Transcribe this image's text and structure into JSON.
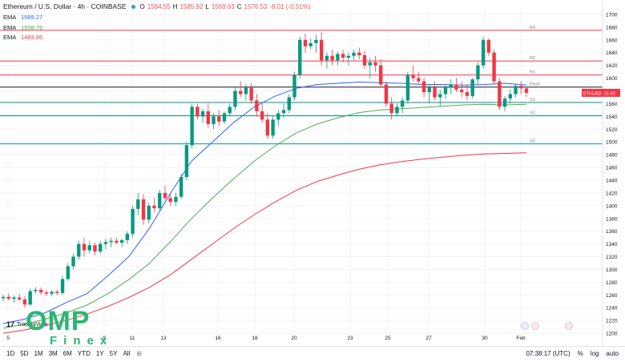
{
  "header": {
    "title": "Ethereum / U.S. Dollar · 4h · COINBASE",
    "ohlc": [
      {
        "k": "O",
        "v": "1584.55"
      },
      {
        "k": "H",
        "v": "1585.92"
      },
      {
        "k": "L",
        "v": "1569.63"
      },
      {
        "k": "C",
        "v": "1576.53"
      },
      {
        "k": "",
        "v": "-8.01 (-0.51%)"
      }
    ]
  },
  "emas": [
    {
      "label": "EMA",
      "value": "1589.27",
      "color": "#2962ff"
    },
    {
      "label": "EMA",
      "value": "1558.76",
      "color": "#4caf50"
    },
    {
      "label": "EMA",
      "value": "1483.06",
      "color": "#f23645"
    }
  ],
  "logo": {
    "tradingview": "TradingView",
    "omp_big": "OMP",
    "omp_small": "Finex"
  },
  "bottom_bar": {
    "timeframes": [
      "1D",
      "5D",
      "1M",
      "3M",
      "6M",
      "YTD",
      "1Y",
      "5Y",
      "All"
    ],
    "clock": "07:38:17 (UTC)",
    "percent": "%",
    "log": "log",
    "auto": "auto"
  },
  "chart_data": {
    "type": "candlestick",
    "symbol_tag": "ETHUSD",
    "symbol_tag_sub": "21:42",
    "ylim": [
      1180,
      1710
    ],
    "y_ticks": [
      1200,
      1220,
      1240,
      1260,
      1280,
      1300,
      1320,
      1340,
      1360,
      1380,
      1400,
      1420,
      1440,
      1460,
      1480,
      1500,
      1520,
      1540,
      1560,
      1580,
      1600,
      1620,
      1640,
      1660,
      1680,
      1700
    ],
    "x_ticks": [
      "5",
      "9",
      "11",
      "13",
      "16",
      "18",
      "20",
      "23",
      "25",
      "27",
      "30",
      "Feb"
    ],
    "levels": [
      {
        "name": "R3",
        "value": 1675,
        "color": "#f23645"
      },
      {
        "name": "R2",
        "value": 1627,
        "color": "#f23645"
      },
      {
        "name": "R1",
        "value": 1605,
        "color": "#f23645"
      },
      {
        "name": "Pivot",
        "value": 1586,
        "color": "#131722"
      },
      {
        "name": "S1",
        "value": 1562,
        "color": "#089981"
      },
      {
        "name": "S2",
        "value": 1541,
        "color": "#089981"
      },
      {
        "name": "S3",
        "value": 1497,
        "color": "#089981"
      }
    ],
    "candles": [
      [
        1255,
        1260,
        1250,
        1257
      ],
      [
        1257,
        1262,
        1252,
        1254
      ],
      [
        1254,
        1259,
        1248,
        1256
      ],
      [
        1256,
        1262,
        1251,
        1253
      ],
      [
        1253,
        1258,
        1240,
        1245
      ],
      [
        1245,
        1270,
        1243,
        1266
      ],
      [
        1266,
        1272,
        1262,
        1268
      ],
      [
        1268,
        1272,
        1260,
        1264
      ],
      [
        1264,
        1268,
        1258,
        1262
      ],
      [
        1262,
        1267,
        1258,
        1265
      ],
      [
        1265,
        1268,
        1260,
        1263
      ],
      [
        1263,
        1290,
        1261,
        1285
      ],
      [
        1285,
        1310,
        1282,
        1305
      ],
      [
        1305,
        1325,
        1300,
        1320
      ],
      [
        1320,
        1345,
        1315,
        1340
      ],
      [
        1340,
        1350,
        1320,
        1330
      ],
      [
        1330,
        1345,
        1325,
        1338
      ],
      [
        1338,
        1342,
        1322,
        1328
      ],
      [
        1328,
        1345,
        1325,
        1340
      ],
      [
        1340,
        1348,
        1332,
        1343
      ],
      [
        1343,
        1350,
        1335,
        1345
      ],
      [
        1345,
        1350,
        1340,
        1342
      ],
      [
        1342,
        1348,
        1335,
        1346
      ],
      [
        1346,
        1360,
        1340,
        1356
      ],
      [
        1356,
        1400,
        1350,
        1395
      ],
      [
        1395,
        1420,
        1385,
        1410
      ],
      [
        1410,
        1418,
        1370,
        1378
      ],
      [
        1378,
        1405,
        1372,
        1400
      ],
      [
        1400,
        1412,
        1390,
        1396
      ],
      [
        1396,
        1425,
        1392,
        1420
      ],
      [
        1420,
        1432,
        1408,
        1412
      ],
      [
        1412,
        1418,
        1400,
        1406
      ],
      [
        1406,
        1420,
        1400,
        1414
      ],
      [
        1414,
        1450,
        1410,
        1445
      ],
      [
        1445,
        1500,
        1440,
        1495
      ],
      [
        1495,
        1560,
        1490,
        1555
      ],
      [
        1555,
        1560,
        1535,
        1540
      ],
      [
        1540,
        1552,
        1530,
        1548
      ],
      [
        1548,
        1560,
        1522,
        1528
      ],
      [
        1528,
        1545,
        1520,
        1540
      ],
      [
        1540,
        1550,
        1525,
        1532
      ],
      [
        1532,
        1548,
        1528,
        1545
      ],
      [
        1545,
        1560,
        1540,
        1555
      ],
      [
        1555,
        1585,
        1550,
        1580
      ],
      [
        1580,
        1595,
        1570,
        1575
      ],
      [
        1575,
        1590,
        1565,
        1585
      ],
      [
        1585,
        1592,
        1560,
        1565
      ],
      [
        1565,
        1575,
        1540,
        1548
      ],
      [
        1548,
        1560,
        1530,
        1535
      ],
      [
        1535,
        1545,
        1505,
        1510
      ],
      [
        1510,
        1540,
        1505,
        1535
      ],
      [
        1535,
        1550,
        1525,
        1545
      ],
      [
        1545,
        1560,
        1538,
        1550
      ],
      [
        1550,
        1575,
        1545,
        1570
      ],
      [
        1570,
        1610,
        1565,
        1605
      ],
      [
        1605,
        1665,
        1600,
        1660
      ],
      [
        1660,
        1670,
        1640,
        1650
      ],
      [
        1650,
        1662,
        1645,
        1655
      ],
      [
        1655,
        1668,
        1640,
        1660
      ],
      [
        1660,
        1672,
        1620,
        1628
      ],
      [
        1628,
        1640,
        1615,
        1635
      ],
      [
        1635,
        1645,
        1620,
        1628
      ],
      [
        1628,
        1642,
        1620,
        1638
      ],
      [
        1638,
        1645,
        1625,
        1632
      ],
      [
        1632,
        1640,
        1620,
        1635
      ],
      [
        1635,
        1645,
        1628,
        1640
      ],
      [
        1640,
        1648,
        1630,
        1636
      ],
      [
        1636,
        1642,
        1615,
        1620
      ],
      [
        1620,
        1632,
        1600,
        1625
      ],
      [
        1625,
        1635,
        1610,
        1620
      ],
      [
        1620,
        1630,
        1585,
        1590
      ],
      [
        1590,
        1595,
        1555,
        1560
      ],
      [
        1560,
        1570,
        1535,
        1545
      ],
      [
        1545,
        1560,
        1540,
        1555
      ],
      [
        1555,
        1570,
        1545,
        1565
      ],
      [
        1565,
        1610,
        1560,
        1605
      ],
      [
        1605,
        1620,
        1595,
        1600
      ],
      [
        1600,
        1610,
        1590,
        1595
      ],
      [
        1595,
        1600,
        1570,
        1578
      ],
      [
        1578,
        1590,
        1560,
        1585
      ],
      [
        1585,
        1595,
        1565,
        1570
      ],
      [
        1570,
        1582,
        1555,
        1575
      ],
      [
        1575,
        1590,
        1568,
        1585
      ],
      [
        1585,
        1598,
        1575,
        1590
      ],
      [
        1590,
        1600,
        1578,
        1582
      ],
      [
        1582,
        1595,
        1570,
        1578
      ],
      [
        1578,
        1590,
        1565,
        1572
      ],
      [
        1572,
        1600,
        1568,
        1598
      ],
      [
        1598,
        1625,
        1590,
        1620
      ],
      [
        1620,
        1665,
        1615,
        1660
      ],
      [
        1660,
        1662,
        1635,
        1640
      ],
      [
        1640,
        1645,
        1590,
        1595
      ],
      [
        1595,
        1600,
        1550,
        1555
      ],
      [
        1555,
        1572,
        1548,
        1568
      ],
      [
        1568,
        1582,
        1560,
        1575
      ],
      [
        1575,
        1590,
        1570,
        1588
      ],
      [
        1588,
        1595,
        1575,
        1584
      ],
      [
        1584,
        1586,
        1570,
        1577
      ]
    ],
    "ema_series": [
      {
        "name": "EMA",
        "color": "#2962ff",
        "values": [
          1215,
          1222,
          1232,
          1248,
          1262,
          1290,
          1320,
          1365,
          1420,
          1470,
          1500,
          1530,
          1555,
          1572,
          1584,
          1590,
          1592,
          1594,
          1593,
          1592,
          1590,
          1590,
          1589,
          1590,
          1592,
          1589
        ]
      },
      {
        "name": "EMA",
        "color": "#4caf50",
        "values": [
          1208,
          1214,
          1222,
          1232,
          1244,
          1262,
          1284,
          1310,
          1344,
          1380,
          1412,
          1442,
          1470,
          1494,
          1514,
          1528,
          1538,
          1546,
          1550,
          1552,
          1554,
          1556,
          1558,
          1559,
          1558,
          1559
        ]
      },
      {
        "name": "EMA",
        "color": "#f23645",
        "values": [
          1200,
          1205,
          1212,
          1220,
          1230,
          1242,
          1256,
          1272,
          1292,
          1316,
          1340,
          1364,
          1386,
          1406,
          1424,
          1438,
          1448,
          1457,
          1464,
          1469,
          1473,
          1476,
          1479,
          1481,
          1482,
          1483
        ]
      }
    ]
  }
}
